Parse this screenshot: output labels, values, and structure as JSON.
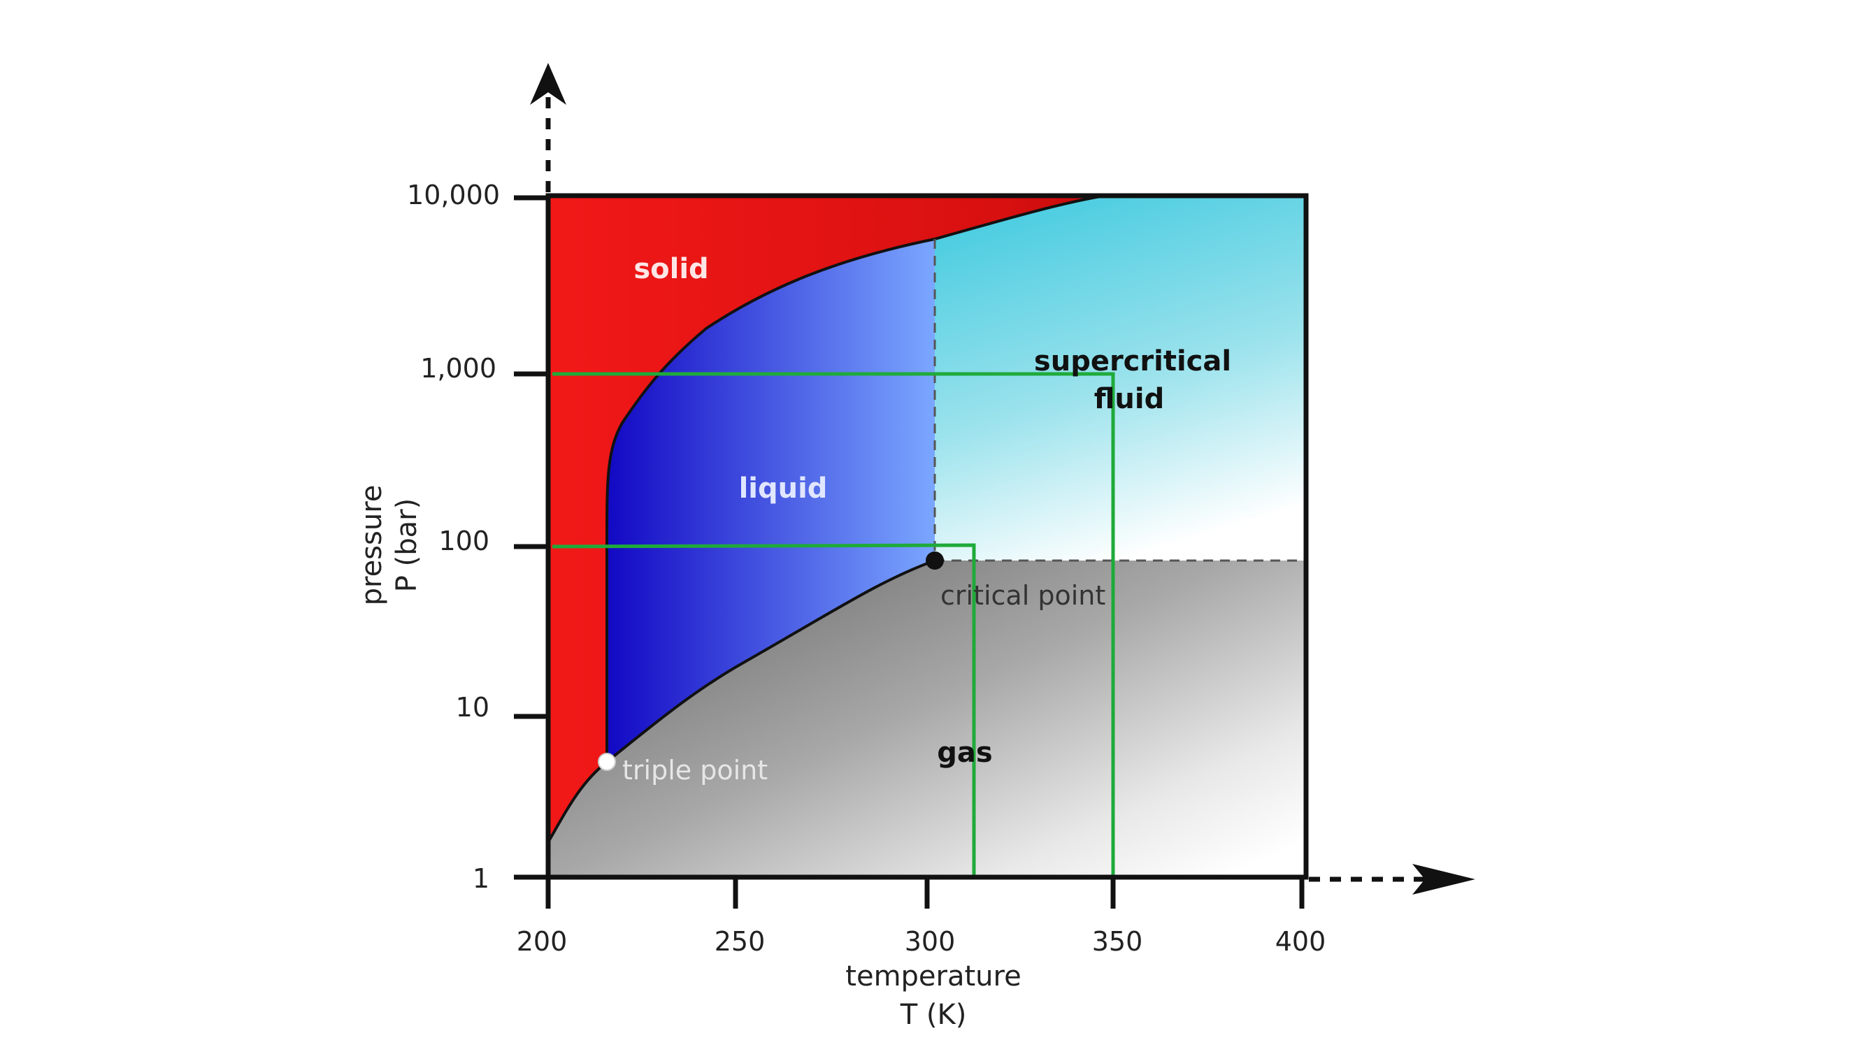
{
  "diagram": {
    "x_axis": {
      "title_line1": "temperature",
      "title_line2": "T (K)",
      "ticks": [
        "200",
        "250",
        "300",
        "350",
        "400"
      ]
    },
    "y_axis": {
      "title_line1": "pressure",
      "title_line2": "P (bar)",
      "ticks": [
        "1",
        "10",
        "100",
        "1,000",
        "10,000"
      ],
      "scale": "log"
    },
    "regions": {
      "solid": "solid",
      "liquid": "liquid",
      "supercritical_line1": "supercritical",
      "supercritical_line2": "fluid",
      "gas": "gas"
    },
    "points": {
      "critical": "critical point",
      "triple": "triple point"
    },
    "colors": {
      "solid": "#ee1c1c",
      "liquid_start": "#1a10c8",
      "liquid_end": "#7aa6ff",
      "supercritical": "#4fd0e0",
      "gas": "#808080",
      "guide_lines": "#1faa3a"
    }
  }
}
